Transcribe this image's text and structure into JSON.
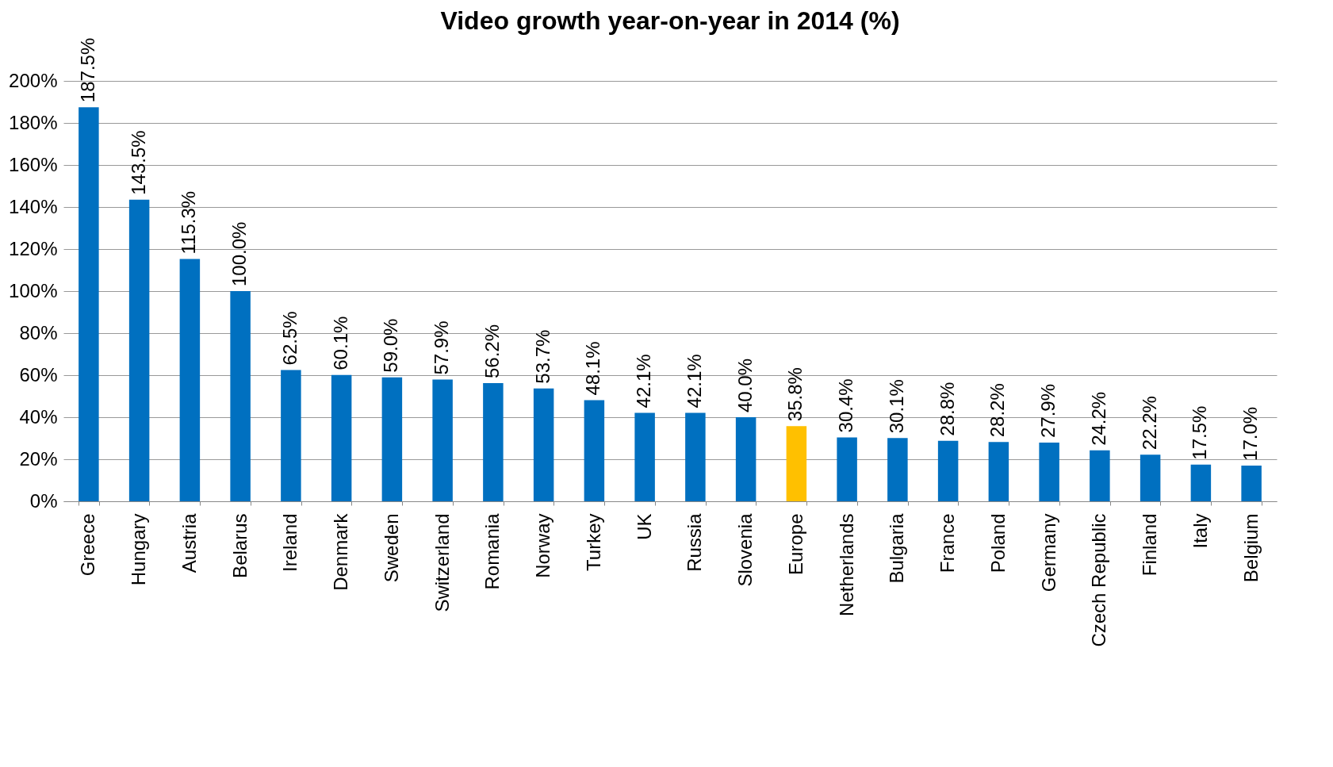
{
  "chart_data": {
    "type": "bar",
    "title": "Video growth year-on-year in 2014 (%)",
    "categories": [
      "Greece",
      "Hungary",
      "Austria",
      "Belarus",
      "Ireland",
      "Denmark",
      "Sweden",
      "Switzerland",
      "Romania",
      "Norway",
      "Turkey",
      "UK",
      "Russia",
      "Slovenia",
      "Europe",
      "Netherlands",
      "Bulgaria",
      "France",
      "Poland",
      "Germany",
      "Czech Republic",
      "Finland",
      "Italy",
      "Belgium"
    ],
    "values": [
      187.5,
      143.5,
      115.3,
      100.0,
      62.5,
      60.1,
      59.0,
      57.9,
      56.2,
      53.7,
      48.1,
      42.1,
      42.1,
      40.0,
      35.8,
      30.4,
      30.1,
      28.8,
      28.2,
      27.9,
      24.2,
      22.2,
      17.5,
      17.0
    ],
    "value_labels": [
      "187.5%",
      "143.5%",
      "115.3%",
      "100.0%",
      "62.5%",
      "60.1%",
      "59.0%",
      "57.9%",
      "56.2%",
      "53.7%",
      "48.1%",
      "42.1%",
      "42.1%",
      "40.0%",
      "35.8%",
      "30.4%",
      "30.1%",
      "28.8%",
      "28.2%",
      "27.9%",
      "24.2%",
      "22.2%",
      "17.5%",
      "17.0%"
    ],
    "colors": [
      "#0070c0",
      "#0070c0",
      "#0070c0",
      "#0070c0",
      "#0070c0",
      "#0070c0",
      "#0070c0",
      "#0070c0",
      "#0070c0",
      "#0070c0",
      "#0070c0",
      "#0070c0",
      "#0070c0",
      "#0070c0",
      "#ffc000",
      "#0070c0",
      "#0070c0",
      "#0070c0",
      "#0070c0",
      "#0070c0",
      "#0070c0",
      "#0070c0",
      "#0070c0",
      "#0070c0"
    ],
    "ylim": [
      0,
      200
    ],
    "yticks": [
      {
        "value": 0,
        "label": "0%"
      },
      {
        "value": 20,
        "label": "20%"
      },
      {
        "value": 40,
        "label": "40%"
      },
      {
        "value": 60,
        "label": "60%"
      },
      {
        "value": 80,
        "label": "80%"
      },
      {
        "value": 100,
        "label": "100%"
      },
      {
        "value": 120,
        "label": "120%"
      },
      {
        "value": 140,
        "label": "140%"
      },
      {
        "value": 160,
        "label": "160%"
      },
      {
        "value": 180,
        "label": "180%"
      },
      {
        "value": 200,
        "label": "200%"
      }
    ],
    "grid": "y"
  }
}
